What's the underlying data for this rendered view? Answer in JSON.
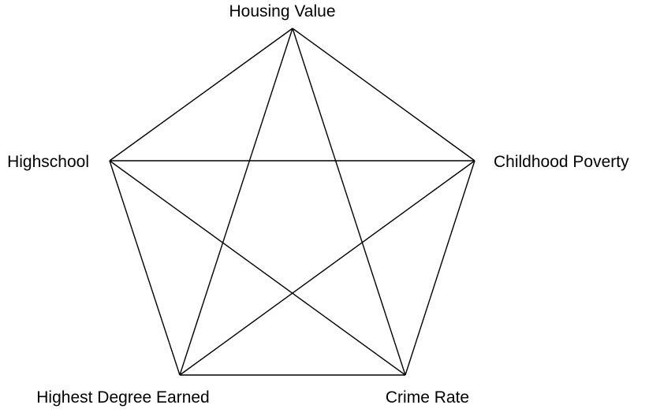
{
  "diagram": {
    "nodes": [
      {
        "id": "housing",
        "label": "Housing Value"
      },
      {
        "id": "poverty",
        "label": "Childhood Poverty"
      },
      {
        "id": "crime",
        "label": "Crime Rate"
      },
      {
        "id": "degree",
        "label": "Highest Degree Earned"
      },
      {
        "id": "highschool",
        "label": "Highschool"
      }
    ],
    "edges": [
      [
        "housing",
        "poverty"
      ],
      [
        "poverty",
        "crime"
      ],
      [
        "crime",
        "degree"
      ],
      [
        "degree",
        "highschool"
      ],
      [
        "highschool",
        "housing"
      ],
      [
        "housing",
        "crime"
      ],
      [
        "housing",
        "degree"
      ],
      [
        "poverty",
        "degree"
      ],
      [
        "poverty",
        "highschool"
      ],
      [
        "crime",
        "highschool"
      ]
    ]
  }
}
